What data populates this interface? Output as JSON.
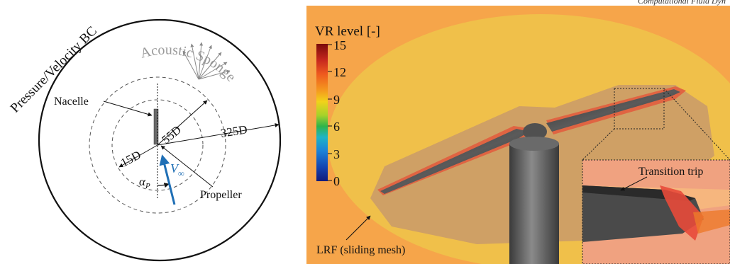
{
  "header_fragment": "Computational Fluid Dyn",
  "domain_diagram": {
    "outer_boundary_label": "Pressure/Velocity BC",
    "sponge_label": "Acoustic Sponge",
    "nacelle_label": "Nacelle",
    "propeller_label": "Propeller",
    "radius_labels": [
      "15D",
      "55D",
      "325D"
    ],
    "angle_label": "α",
    "angle_subscript": "P",
    "velocity_label": "V",
    "velocity_subscript": "∞",
    "colors": {
      "velocity_arrow": "#1f6fb5",
      "sponge_text": "#9a9a9a",
      "lines": "#111111"
    }
  },
  "vr_figure": {
    "legend_title": "VR level [-]",
    "legend_ticks": [
      "15",
      "12",
      "9",
      "6",
      "3",
      "0"
    ],
    "legend_colors": [
      "#7a0a0a",
      "#c8281e",
      "#ee5a1e",
      "#f59a1e",
      "#f2d21a",
      "#a6d22a",
      "#2fb44a",
      "#1fb4c6",
      "#1c82d8",
      "#1443b0",
      "#121a7a"
    ],
    "annotation_trip": "Transition trip",
    "annotation_lrf": "LRF (sliding mesh)",
    "colors": {
      "background": "#f6a54a",
      "inner_zone": "#f0c04a",
      "blade": "#3c3c3c",
      "refine": "#d0321e"
    }
  }
}
